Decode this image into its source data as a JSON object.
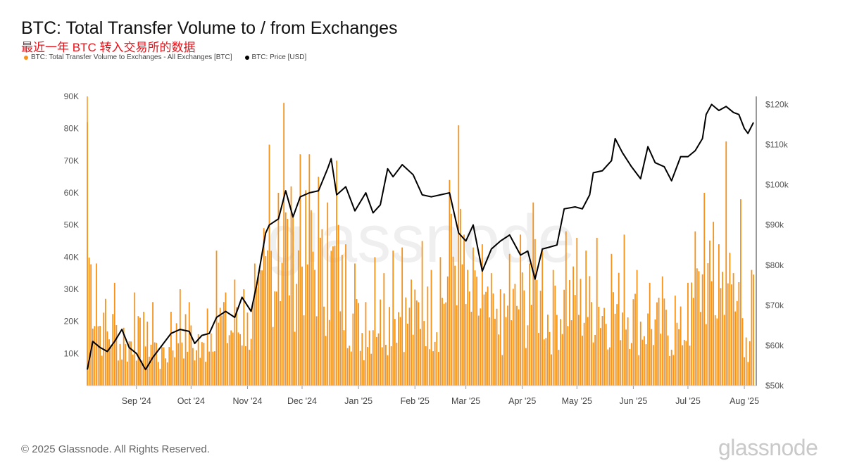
{
  "title": "BTC: Total Transfer Volume to / from Exchanges",
  "subtitle": "最近一年 BTC 转入交易所的数据",
  "legend": [
    {
      "label": "BTC: Total Transfer Volume to Exchanges - All Exchanges [BTC]",
      "color": "#f7931a"
    },
    {
      "label": "BTC: Price [USD]",
      "color": "#000000"
    }
  ],
  "footer": "© 2025 Glassnode. All Rights Reserved.",
  "logo": "glassnode",
  "watermark": "glassnode",
  "chart_data": {
    "type": "bar",
    "title": "BTC: Total Transfer Volume to / from Exchanges",
    "x_range": [
      "2024-08-05",
      "2025-08-06"
    ],
    "x_tick_labels": [
      "Sep '24",
      "Oct '24",
      "Nov '24",
      "Dec '24",
      "Jan '25",
      "Feb '25",
      "Mar '25",
      "Apr '25",
      "May '25",
      "Jun '25",
      "Jul '25",
      "Aug '25"
    ],
    "x_tick_dates": [
      "2024-09-01",
      "2024-10-01",
      "2024-11-01",
      "2024-12-01",
      "2025-01-01",
      "2025-02-01",
      "2025-03-01",
      "2025-04-01",
      "2025-05-01",
      "2025-06-01",
      "2025-07-01",
      "2025-08-01"
    ],
    "y_left": {
      "label": "",
      "ticks": [
        "10K",
        "20K",
        "30K",
        "40K",
        "50K",
        "60K",
        "70K",
        "80K",
        "90K"
      ],
      "range": [
        0,
        90000
      ]
    },
    "y_right": {
      "label": "",
      "ticks": [
        "$50k",
        "$60k",
        "$70k",
        "$80k",
        "$90k",
        "$100k",
        "$110k",
        "$120k"
      ],
      "range": [
        50000,
        122000
      ]
    },
    "grid": false,
    "legend_position": "top-left",
    "series": [
      {
        "name": "BTC: Total Transfer Volume to Exchanges - All Exchanges [BTC]",
        "type": "bar",
        "axis": "left",
        "color": "#f7931a",
        "points": [
          [
            "2024-08-05",
            82000
          ],
          [
            "2024-08-10",
            38000
          ],
          [
            "2024-08-15",
            27000
          ],
          [
            "2024-08-20",
            32000
          ],
          [
            "2024-08-25",
            18000
          ],
          [
            "2024-08-31",
            29000
          ],
          [
            "2024-09-05",
            23000
          ],
          [
            "2024-09-10",
            26000
          ],
          [
            "2024-09-15",
            12000
          ],
          [
            "2024-09-20",
            23000
          ],
          [
            "2024-09-25",
            30000
          ],
          [
            "2024-09-30",
            26000
          ],
          [
            "2024-10-05",
            16000
          ],
          [
            "2024-10-10",
            24000
          ],
          [
            "2024-10-15",
            42000
          ],
          [
            "2024-10-20",
            29000
          ],
          [
            "2024-10-25",
            33000
          ],
          [
            "2024-10-30",
            30000
          ],
          [
            "2024-11-05",
            38000
          ],
          [
            "2024-11-10",
            49000
          ],
          [
            "2024-11-13",
            75000
          ],
          [
            "2024-11-18",
            60000
          ],
          [
            "2024-11-21",
            88000
          ],
          [
            "2024-11-25",
            62000
          ],
          [
            "2024-11-30",
            72000
          ],
          [
            "2024-12-05",
            72000
          ],
          [
            "2024-12-10",
            65000
          ],
          [
            "2024-12-15",
            57000
          ],
          [
            "2024-12-20",
            70000
          ],
          [
            "2024-12-25",
            44000
          ],
          [
            "2024-12-30",
            38000
          ],
          [
            "2025-01-05",
            26000
          ],
          [
            "2025-01-10",
            40000
          ],
          [
            "2025-01-15",
            35000
          ],
          [
            "2025-01-20",
            42000
          ],
          [
            "2025-01-25",
            43000
          ],
          [
            "2025-01-30",
            33000
          ],
          [
            "2025-02-05",
            45000
          ],
          [
            "2025-02-10",
            36000
          ],
          [
            "2025-02-15",
            40000
          ],
          [
            "2025-02-20",
            64000
          ],
          [
            "2025-02-25",
            81000
          ],
          [
            "2025-02-28",
            47000
          ],
          [
            "2025-03-05",
            43000
          ],
          [
            "2025-03-10",
            44000
          ],
          [
            "2025-03-15",
            35000
          ],
          [
            "2025-03-20",
            30000
          ],
          [
            "2025-03-25",
            41000
          ],
          [
            "2025-03-31",
            47000
          ],
          [
            "2025-04-05",
            38000
          ],
          [
            "2025-04-07",
            57000
          ],
          [
            "2025-04-12",
            42000
          ],
          [
            "2025-04-18",
            36000
          ],
          [
            "2025-04-25",
            48000
          ],
          [
            "2025-05-01",
            46000
          ],
          [
            "2025-05-06",
            42000
          ],
          [
            "2025-05-12",
            46000
          ],
          [
            "2025-05-20",
            41000
          ],
          [
            "2025-05-27",
            47000
          ],
          [
            "2025-06-03",
            36000
          ],
          [
            "2025-06-10",
            32000
          ],
          [
            "2025-06-17",
            34000
          ],
          [
            "2025-06-24",
            28000
          ],
          [
            "2025-07-01",
            32000
          ],
          [
            "2025-07-05",
            48000
          ],
          [
            "2025-07-10",
            60000
          ],
          [
            "2025-07-15",
            51000
          ],
          [
            "2025-07-18",
            44000
          ],
          [
            "2025-07-22",
            76000
          ],
          [
            "2025-07-26",
            35000
          ],
          [
            "2025-07-30",
            58000
          ],
          [
            "2025-08-02",
            15000
          ],
          [
            "2025-08-05",
            36000
          ]
        ]
      },
      {
        "name": "BTC: Price [USD]",
        "type": "line",
        "axis": "right",
        "color": "#000000",
        "points": [
          [
            "2024-08-05",
            54000
          ],
          [
            "2024-08-08",
            61000
          ],
          [
            "2024-08-12",
            59500
          ],
          [
            "2024-08-16",
            58500
          ],
          [
            "2024-08-20",
            61000
          ],
          [
            "2024-08-24",
            64000
          ],
          [
            "2024-08-28",
            59500
          ],
          [
            "2024-09-01",
            58000
          ],
          [
            "2024-09-06",
            54000
          ],
          [
            "2024-09-10",
            57000
          ],
          [
            "2024-09-15",
            60000
          ],
          [
            "2024-09-20",
            63000
          ],
          [
            "2024-09-25",
            64000
          ],
          [
            "2024-09-30",
            63500
          ],
          [
            "2024-10-03",
            60500
          ],
          [
            "2024-10-07",
            62500
          ],
          [
            "2024-10-11",
            63000
          ],
          [
            "2024-10-15",
            67000
          ],
          [
            "2024-10-20",
            68500
          ],
          [
            "2024-10-25",
            67000
          ],
          [
            "2024-10-29",
            72000
          ],
          [
            "2024-11-03",
            68500
          ],
          [
            "2024-11-06",
            75000
          ],
          [
            "2024-11-11",
            88000
          ],
          [
            "2024-11-13",
            90000
          ],
          [
            "2024-11-18",
            91500
          ],
          [
            "2024-11-22",
            98500
          ],
          [
            "2024-11-26",
            92000
          ],
          [
            "2024-11-30",
            97000
          ],
          [
            "2024-12-05",
            98000
          ],
          [
            "2024-12-10",
            98500
          ],
          [
            "2024-12-15",
            104000
          ],
          [
            "2024-12-17",
            106500
          ],
          [
            "2024-12-20",
            97500
          ],
          [
            "2024-12-25",
            99500
          ],
          [
            "2024-12-30",
            93500
          ],
          [
            "2025-01-05",
            98000
          ],
          [
            "2025-01-09",
            93000
          ],
          [
            "2025-01-13",
            95000
          ],
          [
            "2025-01-17",
            104000
          ],
          [
            "2025-01-20",
            102000
          ],
          [
            "2025-01-25",
            105000
          ],
          [
            "2025-01-31",
            102500
          ],
          [
            "2025-02-05",
            97500
          ],
          [
            "2025-02-10",
            97000
          ],
          [
            "2025-02-15",
            97500
          ],
          [
            "2025-02-20",
            98000
          ],
          [
            "2025-02-25",
            88000
          ],
          [
            "2025-03-01",
            86000
          ],
          [
            "2025-03-05",
            90000
          ],
          [
            "2025-03-10",
            78500
          ],
          [
            "2025-03-15",
            84000
          ],
          [
            "2025-03-20",
            86000
          ],
          [
            "2025-03-25",
            87500
          ],
          [
            "2025-03-31",
            82500
          ],
          [
            "2025-04-04",
            83500
          ],
          [
            "2025-04-08",
            76500
          ],
          [
            "2025-04-12",
            84000
          ],
          [
            "2025-04-16",
            84500
          ],
          [
            "2025-04-20",
            85000
          ],
          [
            "2025-04-24",
            94000
          ],
          [
            "2025-04-30",
            94500
          ],
          [
            "2025-05-04",
            94000
          ],
          [
            "2025-05-08",
            97500
          ],
          [
            "2025-05-10",
            103000
          ],
          [
            "2025-05-15",
            103500
          ],
          [
            "2025-05-20",
            106000
          ],
          [
            "2025-05-22",
            111500
          ],
          [
            "2025-05-26",
            108000
          ],
          [
            "2025-05-31",
            104500
          ],
          [
            "2025-06-05",
            101500
          ],
          [
            "2025-06-09",
            109500
          ],
          [
            "2025-06-13",
            105500
          ],
          [
            "2025-06-18",
            104500
          ],
          [
            "2025-06-22",
            101000
          ],
          [
            "2025-06-27",
            107000
          ],
          [
            "2025-07-01",
            107000
          ],
          [
            "2025-07-05",
            108500
          ],
          [
            "2025-07-09",
            111500
          ],
          [
            "2025-07-11",
            117500
          ],
          [
            "2025-07-14",
            120000
          ],
          [
            "2025-07-18",
            118500
          ],
          [
            "2025-07-22",
            119500
          ],
          [
            "2025-07-26",
            118000
          ],
          [
            "2025-07-29",
            117500
          ],
          [
            "2025-08-01",
            114000
          ],
          [
            "2025-08-03",
            112800
          ],
          [
            "2025-08-06",
            115500
          ]
        ]
      }
    ]
  }
}
